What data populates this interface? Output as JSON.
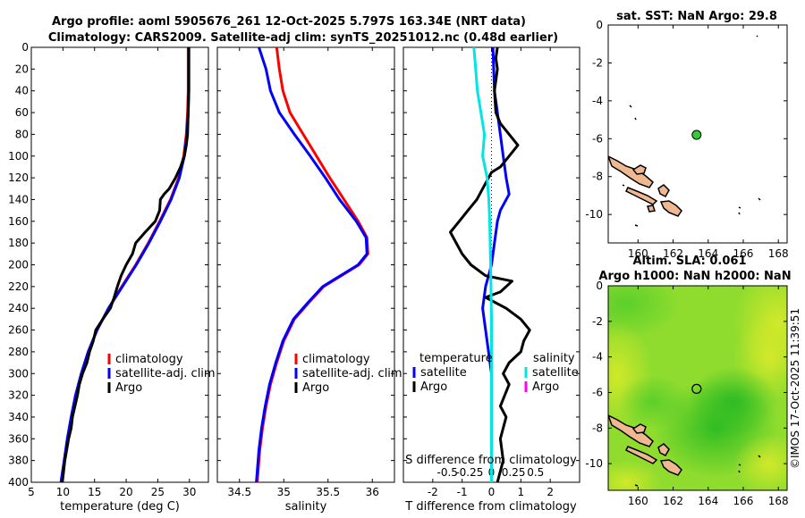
{
  "titles": {
    "main_line1": "Argo profile: aoml 5905676_261 12-Oct-2025 5.797S 163.34E (NRT data)",
    "main_line2": "Climatology: CARS2009. Satellite-adj clim: synTS_20251012.nc (0.48d earlier)",
    "sst": "sat. SST: NaN Argo: 29.8",
    "sla_line1": "Altim. SLA: 0.061",
    "sla_line2": "Argo h1000: NaN h2000: NaN"
  },
  "watermark": "©IMOS 17-Oct-2025 11:39:51",
  "colors": {
    "climatology": "#ff0000",
    "satellite": "#0000ff",
    "argo": "#000000",
    "sal_satellite": "#00e5e5",
    "sal_argo": "#ff00ff",
    "land": "#f0b890"
  },
  "depth_ticks": [
    "0",
    "20",
    "40",
    "60",
    "80",
    "100",
    "120",
    "140",
    "160",
    "180",
    "200",
    "220",
    "240",
    "260",
    "280",
    "300",
    "320",
    "340",
    "360",
    "380",
    "400"
  ],
  "chart_data": [
    {
      "type": "line",
      "id": "temperature",
      "xlabel": "temperature (deg C)",
      "ylabel": "",
      "xlim": [
        5,
        33
      ],
      "ylim": [
        400,
        0
      ],
      "xticks": [
        "5",
        "10",
        "15",
        "20",
        "25",
        "30"
      ],
      "legend": [
        "climatology",
        "satellite-adj. clim",
        "Argo"
      ],
      "series": [
        {
          "name": "climatology",
          "color": "#ff0000",
          "points": [
            [
              29.8,
              0
            ],
            [
              29.8,
              40
            ],
            [
              29.7,
              60
            ],
            [
              29.5,
              80
            ],
            [
              29.1,
              100
            ],
            [
              28.3,
              120
            ],
            [
              27.0,
              140
            ],
            [
              25.3,
              160
            ],
            [
              23.5,
              180
            ],
            [
              21.5,
              200
            ],
            [
              19.3,
              220
            ],
            [
              17.2,
              240
            ],
            [
              15.4,
              260
            ],
            [
              14.0,
              280
            ],
            [
              12.9,
              300
            ],
            [
              12.0,
              320
            ],
            [
              11.3,
              340
            ],
            [
              10.7,
              360
            ],
            [
              10.2,
              380
            ],
            [
              9.7,
              400
            ]
          ]
        },
        {
          "name": "satellite-adj. clim",
          "color": "#0000ff",
          "points": [
            [
              29.9,
              0
            ],
            [
              29.9,
              40
            ],
            [
              29.8,
              60
            ],
            [
              29.6,
              80
            ],
            [
              29.2,
              100
            ],
            [
              28.4,
              120
            ],
            [
              27.1,
              140
            ],
            [
              25.4,
              160
            ],
            [
              23.6,
              180
            ],
            [
              21.6,
              200
            ],
            [
              19.4,
              220
            ],
            [
              17.2,
              240
            ],
            [
              15.4,
              260
            ],
            [
              14.0,
              280
            ],
            [
              12.9,
              300
            ],
            [
              12.0,
              320
            ],
            [
              11.3,
              340
            ],
            [
              10.7,
              360
            ],
            [
              10.2,
              380
            ],
            [
              9.7,
              400
            ]
          ]
        },
        {
          "name": "Argo",
          "color": "#000000",
          "points": [
            [
              29.9,
              0
            ],
            [
              29.9,
              20
            ],
            [
              29.9,
              40
            ],
            [
              29.8,
              60
            ],
            [
              29.7,
              80
            ],
            [
              29.5,
              90
            ],
            [
              29.2,
              100
            ],
            [
              28.6,
              110
            ],
            [
              27.8,
              120
            ],
            [
              26.8,
              130
            ],
            [
              26.0,
              135
            ],
            [
              25.4,
              140
            ],
            [
              25.3,
              150
            ],
            [
              24.6,
              160
            ],
            [
              23.0,
              170
            ],
            [
              21.5,
              180
            ],
            [
              21.0,
              190
            ],
            [
              20.0,
              200
            ],
            [
              19.2,
              210
            ],
            [
              18.6,
              220
            ],
            [
              18.1,
              230
            ],
            [
              17.5,
              240
            ],
            [
              16.3,
              250
            ],
            [
              15.2,
              260
            ],
            [
              14.8,
              270
            ],
            [
              14.2,
              280
            ],
            [
              13.8,
              290
            ],
            [
              13.1,
              300
            ],
            [
              12.6,
              310
            ],
            [
              12.3,
              320
            ],
            [
              11.9,
              330
            ],
            [
              11.5,
              340
            ],
            [
              11.3,
              350
            ],
            [
              10.9,
              360
            ],
            [
              10.6,
              370
            ],
            [
              10.3,
              380
            ],
            [
              10.1,
              390
            ],
            [
              9.9,
              400
            ]
          ]
        }
      ]
    },
    {
      "type": "line",
      "id": "salinity",
      "xlabel": "salinity",
      "ylabel": "",
      "xlim": [
        34.25,
        36.25
      ],
      "ylim": [
        400,
        0
      ],
      "xticks": [
        "34.5",
        "35",
        "35.5",
        "36"
      ],
      "legend": [
        "climatology",
        "satellite-adj. clim",
        "Argo"
      ],
      "series": [
        {
          "name": "climatology",
          "color": "#ff0000",
          "points": [
            [
              34.92,
              0
            ],
            [
              34.95,
              20
            ],
            [
              34.99,
              40
            ],
            [
              35.07,
              60
            ],
            [
              35.22,
              80
            ],
            [
              35.37,
              100
            ],
            [
              35.52,
              120
            ],
            [
              35.68,
              140
            ],
            [
              35.84,
              160
            ],
            [
              35.94,
              175
            ],
            [
              35.95,
              190
            ],
            [
              35.85,
              200
            ],
            [
              35.65,
              210
            ],
            [
              35.45,
              220
            ],
            [
              35.28,
              235
            ],
            [
              35.12,
              250
            ],
            [
              35.0,
              270
            ],
            [
              34.92,
              290
            ],
            [
              34.85,
              310
            ],
            [
              34.8,
              330
            ],
            [
              34.76,
              350
            ],
            [
              34.73,
              370
            ],
            [
              34.71,
              390
            ],
            [
              34.7,
              400
            ]
          ]
        },
        {
          "name": "satellite-adj. clim",
          "color": "#0000ff",
          "points": [
            [
              34.72,
              0
            ],
            [
              34.8,
              20
            ],
            [
              34.85,
              40
            ],
            [
              34.95,
              60
            ],
            [
              35.12,
              80
            ],
            [
              35.3,
              100
            ],
            [
              35.47,
              120
            ],
            [
              35.63,
              140
            ],
            [
              35.82,
              160
            ],
            [
              35.93,
              175
            ],
            [
              35.94,
              190
            ],
            [
              35.84,
              200
            ],
            [
              35.64,
              210
            ],
            [
              35.44,
              220
            ],
            [
              35.27,
              235
            ],
            [
              35.11,
              250
            ],
            [
              34.99,
              270
            ],
            [
              34.91,
              290
            ],
            [
              34.84,
              310
            ],
            [
              34.79,
              330
            ],
            [
              34.75,
              350
            ],
            [
              34.72,
              370
            ],
            [
              34.7,
              390
            ],
            [
              34.69,
              400
            ]
          ]
        }
      ]
    },
    {
      "type": "line",
      "id": "difference",
      "xlabel": "T difference from climatology",
      "top_xlabel": "S difference from climatology",
      "xlim": [
        -3,
        3
      ],
      "top_xlim": [
        -1,
        1
      ],
      "ylim": [
        400,
        0
      ],
      "xticks": [
        "-2",
        "-1",
        "0",
        "1",
        "2"
      ],
      "top_xticks": [
        "-0.5",
        "-0.25",
        "0",
        "0.25",
        "0.5"
      ],
      "legend_temperature": {
        "title": "temperature",
        "items": [
          "satellite",
          "Argo"
        ]
      },
      "legend_salinity": {
        "title": "salinity",
        "items": [
          "satellite",
          "Argo"
        ]
      },
      "series": [
        {
          "name": "T satellite",
          "color": "#0000ff",
          "points": [
            [
              0.05,
              0
            ],
            [
              0.1,
              40
            ],
            [
              0.2,
              60
            ],
            [
              0.3,
              80
            ],
            [
              0.4,
              100
            ],
            [
              0.5,
              120
            ],
            [
              0.6,
              135
            ],
            [
              0.3,
              150
            ],
            [
              0.2,
              160
            ],
            [
              0.1,
              180
            ],
            [
              0.0,
              200
            ],
            [
              -0.2,
              220
            ],
            [
              -0.3,
              240
            ],
            [
              -0.2,
              260
            ],
            [
              0.0,
              300
            ],
            [
              0.0,
              400
            ]
          ]
        },
        {
          "name": "T Argo",
          "color": "#000000",
          "points": [
            [
              0.2,
              0
            ],
            [
              0.15,
              10
            ],
            [
              0.2,
              20
            ],
            [
              0.1,
              40
            ],
            [
              0.15,
              60
            ],
            [
              0.3,
              70
            ],
            [
              0.9,
              90
            ],
            [
              0.6,
              100
            ],
            [
              0.3,
              110
            ],
            [
              0.0,
              115
            ],
            [
              -0.3,
              130
            ],
            [
              -0.5,
              140
            ],
            [
              -0.8,
              150
            ],
            [
              -1.1,
              160
            ],
            [
              -1.4,
              170
            ],
            [
              -1.2,
              180
            ],
            [
              -1.0,
              190
            ],
            [
              -0.7,
              200
            ],
            [
              -0.2,
              210
            ],
            [
              0.7,
              215
            ],
            [
              0.3,
              225
            ],
            [
              -0.2,
              230
            ],
            [
              0.5,
              240
            ],
            [
              1.0,
              250
            ],
            [
              1.3,
              260
            ],
            [
              1.1,
              270
            ],
            [
              1.0,
              280
            ],
            [
              0.6,
              290
            ],
            [
              0.4,
              300
            ],
            [
              0.6,
              310
            ],
            [
              0.3,
              330
            ],
            [
              0.5,
              340
            ],
            [
              0.3,
              360
            ],
            [
              0.4,
              380
            ],
            [
              0.2,
              400
            ]
          ]
        },
        {
          "name": "S satellite",
          "color": "#00e5e5",
          "axis": "top",
          "points": [
            [
              -0.2,
              0
            ],
            [
              -0.18,
              20
            ],
            [
              -0.16,
              40
            ],
            [
              -0.12,
              60
            ],
            [
              -0.08,
              80
            ],
            [
              -0.1,
              100
            ],
            [
              -0.05,
              120
            ],
            [
              -0.03,
              140
            ],
            [
              -0.02,
              160
            ],
            [
              -0.01,
              200
            ],
            [
              0.0,
              250
            ],
            [
              0.0,
              300
            ],
            [
              0.0,
              400
            ]
          ]
        }
      ]
    },
    {
      "type": "scatter",
      "id": "sst_map",
      "title": "sat. SST: NaN Argo: 29.8",
      "xlim": [
        158.3,
        168.5
      ],
      "ylim": [
        -11.5,
        0
      ],
      "xticks": [
        "160",
        "162",
        "164",
        "166",
        "168"
      ],
      "yticks": [
        "0",
        "-2",
        "-4",
        "-6",
        "-8",
        "-10"
      ],
      "marker": {
        "lon": 163.34,
        "lat": -5.797,
        "color": "#33cc33"
      }
    },
    {
      "type": "heatmap",
      "id": "sla_map",
      "title": "Altim. SLA: 0.061",
      "xlim": [
        158.3,
        168.5
      ],
      "ylim": [
        -11.5,
        0
      ],
      "xticks": [
        "160",
        "162",
        "164",
        "166",
        "168"
      ],
      "yticks": [
        "0",
        "-2",
        "-4",
        "-6",
        "-8",
        "-10"
      ],
      "marker": {
        "lon": 163.34,
        "lat": -5.797
      }
    }
  ]
}
